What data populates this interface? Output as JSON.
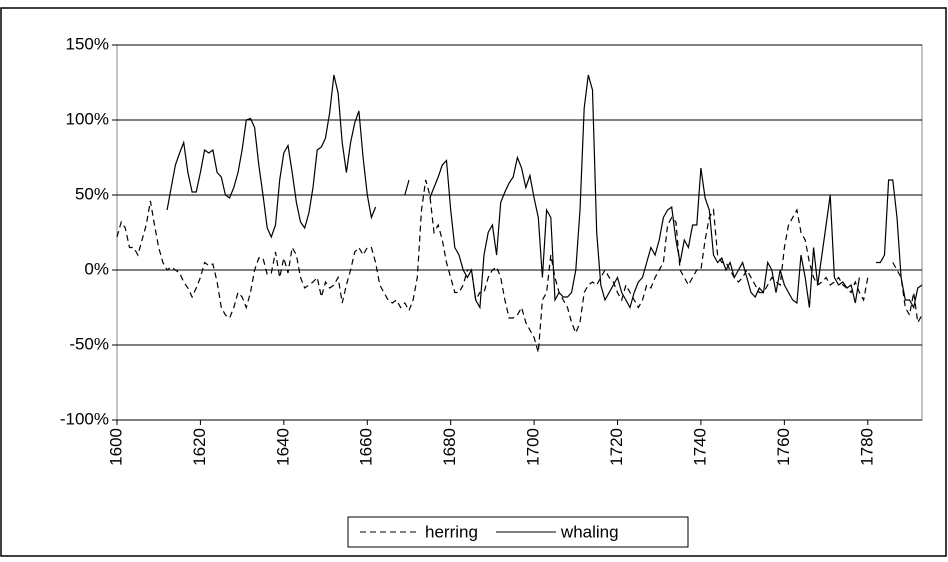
{
  "chart_data": {
    "type": "line",
    "x": [
      1600,
      1601,
      1602,
      1603,
      1604,
      1605,
      1606,
      1607,
      1608,
      1609,
      1610,
      1611,
      1612,
      1613,
      1614,
      1615,
      1616,
      1617,
      1618,
      1619,
      1620,
      1621,
      1622,
      1623,
      1624,
      1625,
      1626,
      1627,
      1628,
      1629,
      1630,
      1631,
      1632,
      1633,
      1634,
      1635,
      1636,
      1637,
      1638,
      1639,
      1640,
      1641,
      1642,
      1643,
      1644,
      1645,
      1646,
      1647,
      1648,
      1649,
      1650,
      1651,
      1652,
      1653,
      1654,
      1655,
      1656,
      1657,
      1658,
      1659,
      1660,
      1661,
      1662,
      1663,
      1664,
      1665,
      1666,
      1667,
      1668,
      1669,
      1670,
      1671,
      1672,
      1673,
      1674,
      1675,
      1676,
      1677,
      1678,
      1679,
      1680,
      1681,
      1682,
      1683,
      1684,
      1685,
      1686,
      1687,
      1688,
      1689,
      1690,
      1691,
      1692,
      1693,
      1694,
      1695,
      1696,
      1697,
      1698,
      1699,
      1700,
      1701,
      1702,
      1703,
      1704,
      1705,
      1706,
      1707,
      1708,
      1709,
      1710,
      1711,
      1712,
      1713,
      1714,
      1715,
      1716,
      1717,
      1718,
      1719,
      1720,
      1721,
      1722,
      1723,
      1724,
      1725,
      1726,
      1727,
      1728,
      1729,
      1730,
      1731,
      1732,
      1733,
      1734,
      1735,
      1736,
      1737,
      1738,
      1739,
      1740,
      1741,
      1742,
      1743,
      1744,
      1745,
      1746,
      1747,
      1748,
      1749,
      1750,
      1751,
      1752,
      1753,
      1754,
      1755,
      1756,
      1757,
      1758,
      1759,
      1760,
      1761,
      1762,
      1763,
      1764,
      1765,
      1766,
      1767,
      1768,
      1769,
      1770,
      1771,
      1772,
      1773,
      1774,
      1775,
      1776,
      1777,
      1778,
      1779,
      1780,
      1781,
      1782,
      1783,
      1784,
      1785,
      1786,
      1787,
      1788,
      1789,
      1790,
      1791,
      1792,
      1793
    ],
    "series": [
      {
        "name": "herring",
        "color": "#000000",
        "style": "dashed",
        "values": [
          22,
          32,
          28,
          15,
          15,
          10,
          20,
          30,
          46,
          30,
          15,
          5,
          0,
          2,
          0,
          -2,
          -8,
          -12,
          -18,
          -12,
          -5,
          5,
          3,
          4,
          -8,
          -25,
          -30,
          -32,
          -25,
          -15,
          -18,
          -25,
          -15,
          0,
          8,
          8,
          -3,
          -2,
          12,
          -5,
          8,
          -2,
          15,
          10,
          -5,
          -12,
          -10,
          -8,
          -5,
          -18,
          -8,
          -12,
          -10,
          -5,
          -22,
          -10,
          0,
          12,
          15,
          10,
          15,
          15,
          5,
          -10,
          -15,
          -20,
          -22,
          -20,
          -25,
          -22,
          -27,
          -20,
          -5,
          40,
          60,
          50,
          25,
          30,
          20,
          5,
          -5,
          -15,
          -15,
          -10,
          0,
          0,
          -20,
          -15,
          -15,
          -5,
          0,
          2,
          -5,
          -20,
          -32,
          -32,
          -30,
          -25,
          -35,
          -40,
          -45,
          -55,
          -20,
          -15,
          10,
          -5,
          -15,
          -20,
          -25,
          -35,
          -42,
          -35,
          -15,
          -10,
          -8,
          -10,
          -5,
          0,
          -5,
          -8,
          -15,
          -20,
          -10,
          -15,
          -20,
          -25,
          -20,
          -10,
          -12,
          -5,
          0,
          5,
          30,
          35,
          32,
          0,
          -5,
          -10,
          -5,
          0,
          0,
          20,
          35,
          40,
          10,
          5,
          5,
          0,
          -5,
          -8,
          -5,
          0,
          -5,
          -10,
          -15,
          -15,
          -10,
          -5,
          -8,
          -10,
          15,
          30,
          35,
          40,
          25,
          20,
          5,
          -5,
          -10,
          -8,
          -5,
          -10,
          -8,
          -5,
          -10,
          -12,
          -15,
          -8,
          -15,
          -20,
          -5,
          null,
          null,
          null,
          null,
          null,
          5,
          0,
          -5,
          -25,
          -30,
          -15,
          -35,
          -30
        ]
      },
      {
        "name": "whaling",
        "color": "#000000",
        "style": "solid",
        "values": [
          null,
          null,
          null,
          null,
          null,
          null,
          null,
          null,
          null,
          null,
          null,
          null,
          40,
          55,
          70,
          78,
          85,
          65,
          52,
          52,
          65,
          80,
          78,
          80,
          65,
          62,
          50,
          48,
          55,
          65,
          80,
          100,
          101,
          95,
          70,
          50,
          28,
          22,
          30,
          60,
          78,
          83,
          65,
          45,
          32,
          28,
          38,
          55,
          80,
          82,
          88,
          105,
          130,
          118,
          85,
          65,
          85,
          98,
          106,
          75,
          50,
          35,
          42,
          null,
          null,
          null,
          null,
          null,
          null,
          50,
          60,
          null,
          null,
          null,
          null,
          48,
          55,
          62,
          70,
          73,
          40,
          15,
          10,
          0,
          -5,
          0,
          -20,
          -25,
          10,
          25,
          30,
          10,
          45,
          52,
          58,
          62,
          75,
          68,
          55,
          63,
          48,
          35,
          -5,
          40,
          35,
          -20,
          -15,
          -18,
          -18,
          -15,
          0,
          40,
          108,
          130,
          120,
          25,
          -10,
          -20,
          -15,
          -10,
          -5,
          -15,
          -20,
          -25,
          -15,
          -8,
          -5,
          5,
          15,
          10,
          20,
          35,
          40,
          42,
          20,
          5,
          20,
          15,
          30,
          30,
          68,
          48,
          40,
          10,
          5,
          8,
          0,
          5,
          -5,
          0,
          5,
          -5,
          -15,
          -18,
          -12,
          -15,
          5,
          0,
          -15,
          0,
          -10,
          -15,
          -20,
          -22,
          10,
          -5,
          -25,
          15,
          -10,
          10,
          30,
          50,
          -5,
          -10,
          -8,
          -12,
          -10,
          -22,
          -5,
          null,
          null,
          null,
          5,
          5,
          10,
          60,
          60,
          35,
          -5,
          -20,
          -20,
          -25,
          -12,
          -10
        ]
      }
    ],
    "xlim": [
      1600,
      1793
    ],
    "xticks": [
      1600,
      1620,
      1640,
      1660,
      1680,
      1700,
      1720,
      1740,
      1760,
      1780
    ],
    "ylim": [
      -100,
      150
    ],
    "yticks": [
      {
        "value": -100,
        "label": "-100%"
      },
      {
        "value": -50,
        "label": "-50%"
      },
      {
        "value": 0,
        "label": "0%"
      },
      {
        "value": 50,
        "label": "50%"
      },
      {
        "value": 100,
        "label": "100%"
      },
      {
        "value": 150,
        "label": "150%"
      }
    ],
    "grid": true,
    "legend": "bottom"
  }
}
